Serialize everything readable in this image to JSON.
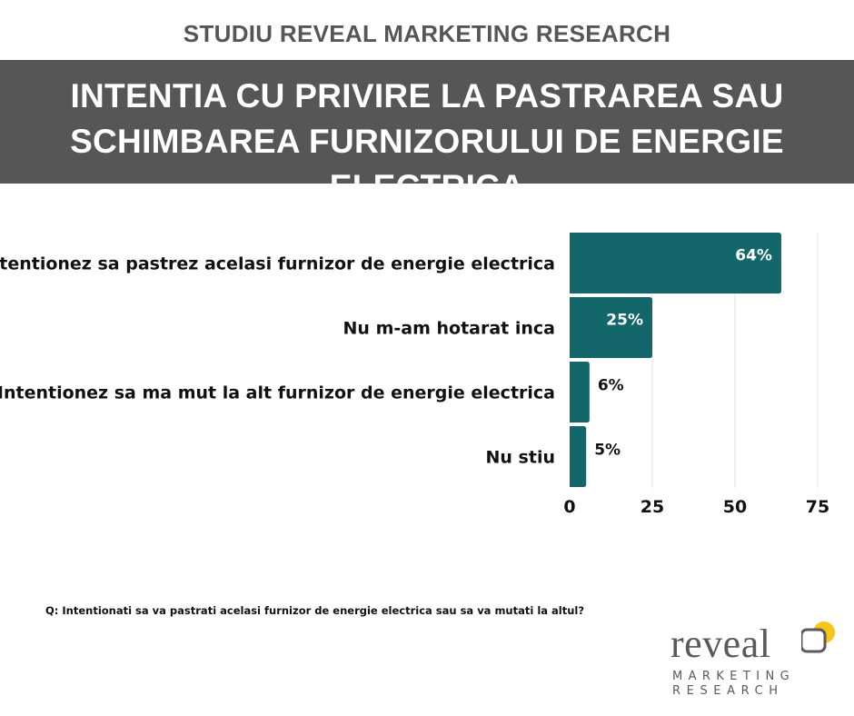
{
  "header": {
    "kicker": "STUDIU REVEAL MARKETING RESEARCH",
    "title_line1": "INTENTIA CU PRIVIRE LA PASTRAREA SAU",
    "title_line2": "SCHIMBAREA FURNIZORULUI DE ENERGIE ELECTRICA"
  },
  "chart_data": {
    "type": "bar",
    "orientation": "horizontal",
    "categories": [
      "Intentionez sa pastrez acelasi furnizor de energie electrica",
      "Nu m-am hotarat inca",
      "Intentionez sa ma mut la alt furnizor de energie electrica",
      "Nu stiu"
    ],
    "values": [
      64,
      25,
      6,
      5
    ],
    "value_labels": [
      "64%",
      "25%",
      "6%",
      "5%"
    ],
    "xlim": [
      0,
      75
    ],
    "xticks": [
      0,
      25,
      50,
      75
    ],
    "grid": true,
    "bar_color": "#13666a",
    "title": "",
    "xlabel": "",
    "ylabel": ""
  },
  "footer": {
    "question": "Q: Intentionati sa va pastrati acelasi furnizor de energie electrica sau sa va mutati la altul?"
  },
  "logo": {
    "word": "reveal",
    "line1": "MARKETING",
    "line2": "RESEARCH",
    "accent_color": "#f5c518",
    "gray_color": "#5a5a5a"
  }
}
